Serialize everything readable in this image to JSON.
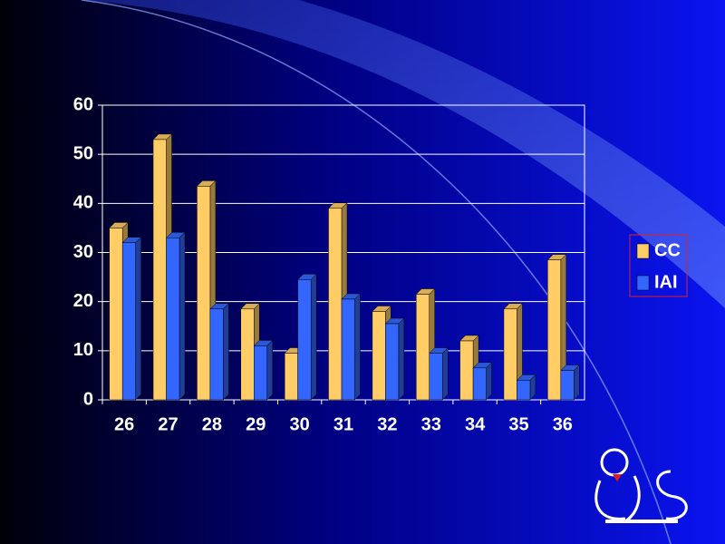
{
  "chart_data": {
    "type": "bar3d",
    "categories": [
      "26",
      "27",
      "28",
      "29",
      "30",
      "31",
      "32",
      "33",
      "34",
      "35",
      "36"
    ],
    "series": [
      {
        "name": "CC",
        "color": "#ffcc66",
        "values": [
          35,
          53,
          43.5,
          18.5,
          9.5,
          39,
          18,
          21.5,
          12,
          18.5,
          28.5
        ]
      },
      {
        "name": "IAI",
        "color": "#3366ff",
        "values": [
          32,
          33,
          18.5,
          11,
          24.5,
          20.5,
          15.5,
          9.5,
          6.5,
          4,
          6
        ]
      }
    ],
    "ylim": [
      0,
      60
    ],
    "yticks": [
      0,
      10,
      20,
      30,
      40,
      50,
      60
    ],
    "grid": true,
    "legend": "right"
  }
}
